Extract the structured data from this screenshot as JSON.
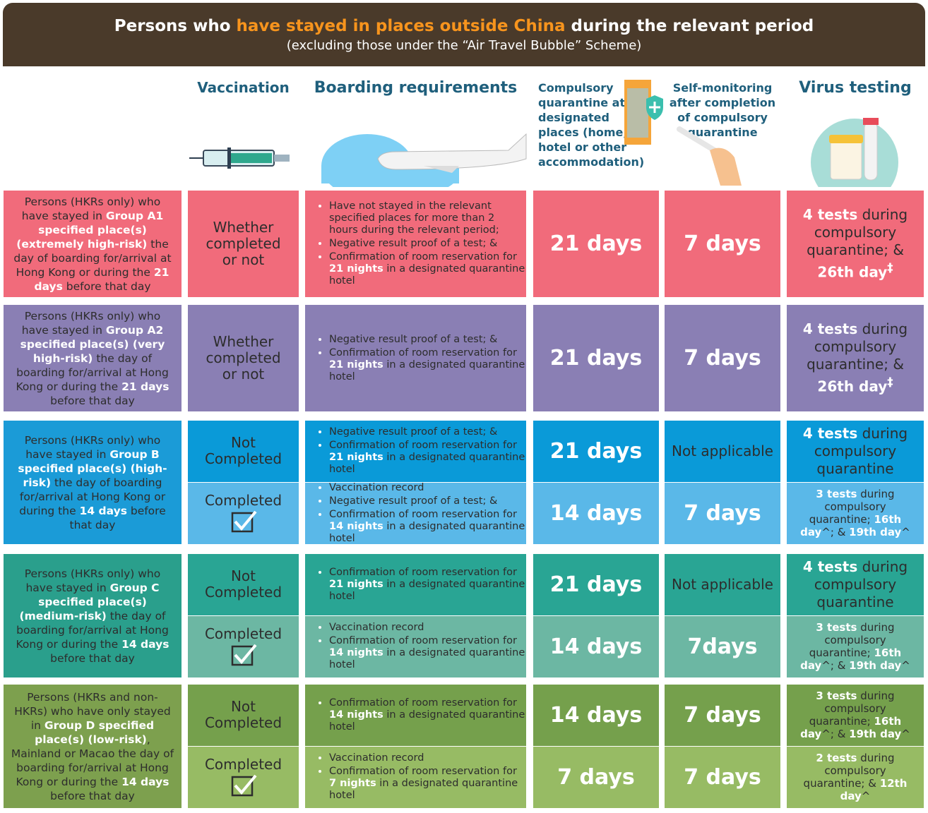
{
  "header": {
    "title": [
      "Persons who ",
      {
        "text": "have stayed in places outside China",
        "color": "#f7941d"
      },
      " during the relevant period"
    ],
    "subtitle": "(excluding those under the “Air Travel Bubble” Scheme)"
  },
  "columns": [
    "Vaccination",
    "Boarding requirements",
    "Compulsory quarantine at designated places (home, hotel or other accommodation)",
    "Self-monitoring after completion of compulsory quarantine",
    "Virus testing"
  ],
  "rows": [
    {
      "color": "#f16b7b",
      "group": [
        "Persons (HKRs only) who have stayed in ",
        {
          "text": "Group A1 specified place(s) (extremely high-risk)",
          "bold": true
        },
        " the day of boarding for/arrival at Hong Kong or during the ",
        {
          "text": "21 days",
          "bold": true
        },
        " before that day"
      ],
      "subrows": [
        {
          "color": "#f16b7b",
          "vaccination": "Whether completed or not",
          "boarding": [
            [
              "Have not stayed in the relevant specified places for more than 2 hours during the relevant period;"
            ],
            [
              "Negative result proof of a test; &"
            ],
            [
              "Confirmation of room reservation for ",
              {
                "text": "21 nights",
                "bold": true
              },
              " in a designated quarantine hotel"
            ]
          ],
          "quarantine": "21 days",
          "self_monitoring": "7 days",
          "testing": [
            {
              "text": "4 tests",
              "bold": true
            },
            " during compulsory quarantine; & ",
            {
              "text": "26th day",
              "bold": true
            },
            {
              "text": "‡",
              "sup": true
            }
          ]
        }
      ]
    },
    {
      "color": "#8a7fb4",
      "group": [
        "Persons (HKRs only) who have stayed in ",
        {
          "text": "Group A2 specified place(s) (very high-risk)",
          "bold": true
        },
        " the day of boarding for/arrival at Hong Kong or during the ",
        {
          "text": "21 days",
          "bold": true
        },
        " before that day"
      ],
      "subrows": [
        {
          "color": "#8a7fb4",
          "vaccination": "Whether completed or not",
          "boarding": [
            [
              "Negative result proof of a test; &"
            ],
            [
              "Confirmation of room reservation for ",
              {
                "text": "21 nights",
                "bold": true
              },
              " in a designated quarantine hotel"
            ]
          ],
          "quarantine": "21 days",
          "self_monitoring": "7 days",
          "testing": [
            {
              "text": "4 tests",
              "bold": true
            },
            " during compulsory quarantine; & ",
            {
              "text": "26th day",
              "bold": true
            },
            {
              "text": "‡",
              "sup": true
            }
          ]
        }
      ]
    },
    {
      "color": "#1b9bd7",
      "group": [
        "Persons (HKRs only) who have stayed in ",
        {
          "text": "Group B specified place(s) (high-risk)",
          "bold": true
        },
        " the day of boarding for/arrival at Hong Kong or during the ",
        {
          "text": "14 days",
          "bold": true
        },
        " before that day"
      ],
      "subrows": [
        {
          "color": "#0a9ad8",
          "vaccination": "Not Completed",
          "boarding": [
            [
              "Negative result proof of a test; &"
            ],
            [
              "Confirmation of room reservation for ",
              {
                "text": "21 nights",
                "bold": true
              },
              " in a designated quarantine hotel"
            ]
          ],
          "quarantine": "21 days",
          "self_monitoring": "Not applicable",
          "testing": [
            {
              "text": "4 tests",
              "bold": true
            },
            " during compulsory quarantine"
          ]
        },
        {
          "color": "#5ab8e8",
          "vaccination": "Completed",
          "check": true,
          "small": true,
          "boarding": [
            [
              "Vaccination record"
            ],
            [
              "Negative result proof of a test; &"
            ],
            [
              "Confirmation of room reservation for ",
              {
                "text": "14 nights",
                "bold": true
              },
              " in a designated quarantine hotel"
            ]
          ],
          "quarantine": "14 days",
          "self_monitoring": "7 days",
          "testing": [
            {
              "text": "3 tests",
              "bold": true
            },
            " during compulsory quarantine; ",
            {
              "text": "16th day",
              "bold": true
            },
            "^; & ",
            {
              "text": "19th day",
              "bold": true
            },
            "^"
          ]
        }
      ]
    },
    {
      "color": "#2a9f8c",
      "group": [
        "Persons (HKRs only) who have stayed in ",
        {
          "text": "Group C specified place(s) (medium-risk)",
          "bold": true
        },
        " the day of boarding for/arrival at Hong Kong or during the ",
        {
          "text": "14 days",
          "bold": true
        },
        " before that day"
      ],
      "subrows": [
        {
          "color": "#29a594",
          "vaccination": "Not Completed",
          "boarding": [
            [
              "Confirmation of room reservation for ",
              {
                "text": "21 nights",
                "bold": true
              },
              " in a designated quarantine hotel"
            ]
          ],
          "quarantine": "21 days",
          "self_monitoring": "Not applicable",
          "testing": [
            {
              "text": "4 tests",
              "bold": true
            },
            " during compulsory quarantine"
          ]
        },
        {
          "color": "#6cb7a3",
          "vaccination": "Completed",
          "check": true,
          "small": true,
          "boarding": [
            [
              "Vaccination record"
            ],
            [
              "Confirmation of room reservation for ",
              {
                "text": "14 nights",
                "bold": true
              },
              " in a designated quarantine hotel"
            ]
          ],
          "quarantine": "14 days",
          "self_monitoring": "7days",
          "testing": [
            {
              "text": "3 tests",
              "bold": true
            },
            " during compulsory quarantine; ",
            {
              "text": "16th day",
              "bold": true
            },
            "^; & ",
            {
              "text": "19th day",
              "bold": true
            },
            "^"
          ]
        }
      ]
    },
    {
      "color": "#7da04e",
      "group": [
        "Persons (HKRs and non-HKRs) who have only stayed in ",
        {
          "text": "Group D specified place(s) (low-risk)",
          "bold": true
        },
        ", Mainland or Macao the day of boarding for/arrival at Hong Kong or during the ",
        {
          "text": "14 days",
          "bold": true
        },
        " before that day"
      ],
      "subrows": [
        {
          "color": "#75a04c",
          "vaccination": "Not Completed",
          "small": true,
          "boarding": [
            [
              "Confirmation of room reservation for ",
              {
                "text": "14 nights",
                "bold": true
              },
              " in a designated quarantine hotel"
            ]
          ],
          "quarantine": "14 days",
          "self_monitoring": "7 days",
          "testing": [
            {
              "text": "3 tests",
              "bold": true
            },
            " during compulsory quarantine; ",
            {
              "text": "16th day",
              "bold": true
            },
            "^; & ",
            {
              "text": "19th day",
              "bold": true
            },
            "^"
          ]
        },
        {
          "color": "#97bb64",
          "vaccination": "Completed",
          "check": true,
          "small": true,
          "boarding": [
            [
              "Vaccination record"
            ],
            [
              "Confirmation of room reservation for ",
              {
                "text": "7 nights",
                "bold": true
              },
              " in a designated quarantine hotel"
            ]
          ],
          "quarantine": "7 days",
          "self_monitoring": "7 days",
          "testing": [
            {
              "text": "2 tests",
              "bold": true
            },
            " during compulsory quarantine; & ",
            {
              "text": "12th day",
              "bold": true
            },
            "^"
          ]
        }
      ]
    }
  ]
}
